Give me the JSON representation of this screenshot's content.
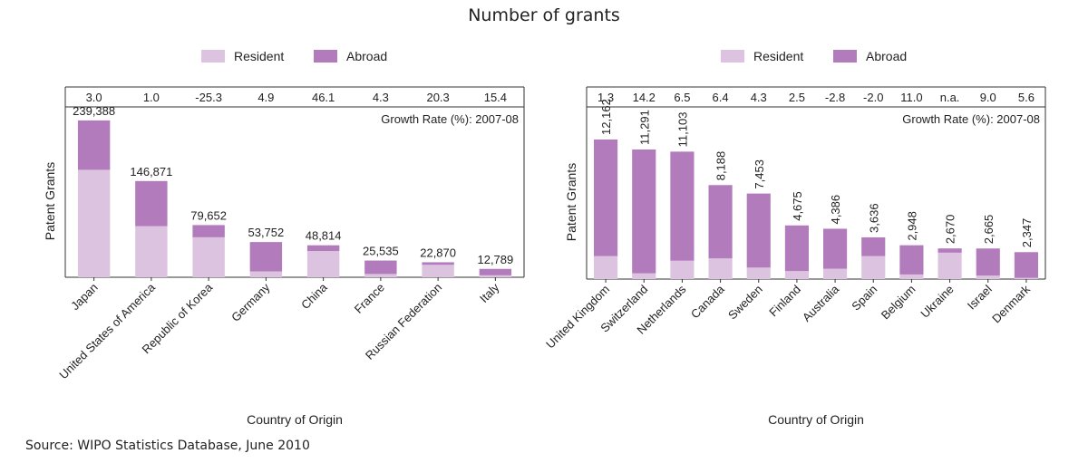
{
  "page": {
    "title": "Number of grants",
    "source": "Source: WIPO Statistics Database, June 2010"
  },
  "colors": {
    "resident": "#dcc3df",
    "abroad": "#b27bbc",
    "axis": "#333333"
  },
  "chart_data": [
    {
      "type": "bar",
      "stacked": true,
      "categories": [
        "Japan",
        "United States of America",
        "Republic of Korea",
        "Germany",
        "China",
        "France",
        "Russian Federation",
        "Italy"
      ],
      "series": [
        {
          "name": "Resident",
          "values": [
            164000,
            78000,
            61000,
            9000,
            40000,
            5000,
            19000,
            3000
          ]
        },
        {
          "name": "Abroad",
          "values": [
            75388,
            68871,
            18652,
            44752,
            8814,
            20535,
            3870,
            9789
          ]
        }
      ],
      "total_labels": [
        "239,388",
        "146,871",
        "79,652",
        "53,752",
        "48,814",
        "25,535",
        "22,870",
        "12,789"
      ],
      "growth_rates": [
        "3.0",
        "1.0",
        "-25.3",
        "4.9",
        "46.1",
        "4.3",
        "20.3",
        "15.4"
      ],
      "growth_label": "Growth Rate (%): 2007-08",
      "xlabel": "Country of Origin",
      "ylabel": "Patent Grants",
      "ylim": [
        0,
        260000
      ],
      "legend": "top-center",
      "value_label_orientation": "horizontal"
    },
    {
      "type": "bar",
      "stacked": true,
      "categories": [
        "United Kingdom",
        "Switzerland",
        "Netherlands",
        "Canada",
        "Sweden",
        "Finland",
        "Australia",
        "Spain",
        "Belgium",
        "Ukraine",
        "Israel",
        "Denmark"
      ],
      "series": [
        {
          "name": "Resident",
          "values": [
            2000,
            500,
            1600,
            1800,
            1000,
            700,
            900,
            2000,
            400,
            2300,
            300,
            100
          ]
        },
        {
          "name": "Abroad",
          "values": [
            10162,
            10791,
            9503,
            6388,
            6453,
            3975,
            3486,
            1636,
            2548,
            370,
            2365,
            2247
          ]
        }
      ],
      "total_labels": [
        "12,162",
        "11,291",
        "11,103",
        "8,188",
        "7,453",
        "4,675",
        "4,386",
        "3,636",
        "2,948",
        "2,670",
        "2,665",
        "2,347"
      ],
      "growth_rates": [
        "1.3",
        "14.2",
        "6.5",
        "6.4",
        "4.3",
        "2.5",
        "-2.8",
        "-2.0",
        "11.0",
        "n.a.",
        "9.0",
        "5.6"
      ],
      "growth_label": "Growth Rate (%): 2007-08",
      "xlabel": "Country of Origin",
      "ylabel": "Patent Grants",
      "ylim": [
        0,
        15000
      ],
      "legend": "top-center",
      "value_label_orientation": "vertical"
    }
  ]
}
